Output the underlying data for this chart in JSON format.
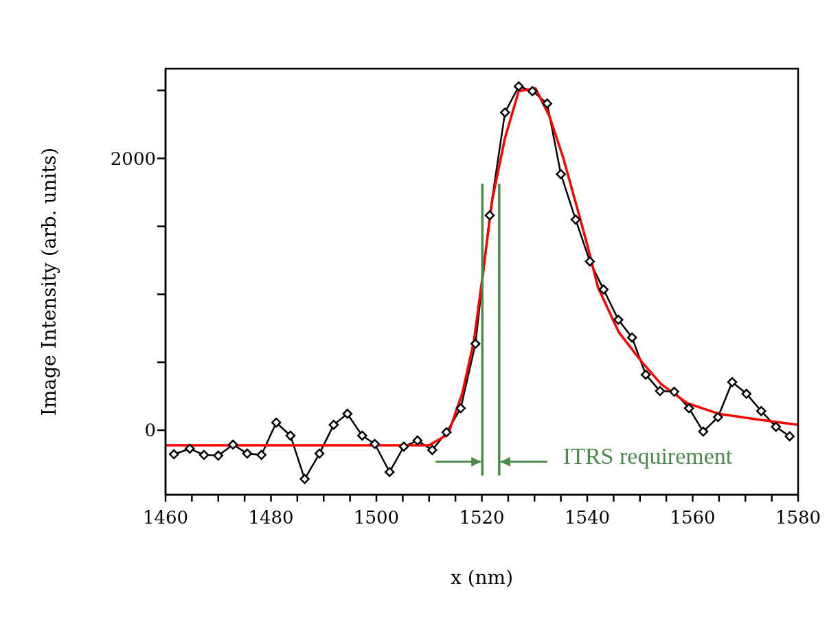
{
  "chart_data": {
    "type": "line",
    "xlabel": "x (nm)",
    "ylabel": "Image Intensity (arb. units)",
    "xlim": [
      1460,
      1580
    ],
    "ylim": [
      -475,
      2660
    ],
    "xticks": [
      1460,
      {
        "value": 1465,
        "label": null
      },
      {
        "value": 1470,
        "label": null
      },
      {
        "value": 1475,
        "label": null
      },
      1480,
      {
        "value": 1485,
        "label": null
      },
      {
        "value": 1490,
        "label": null
      },
      {
        "value": 1495,
        "label": null
      },
      1500,
      {
        "value": 1505,
        "label": null
      },
      {
        "value": 1510,
        "label": null
      },
      {
        "value": 1515,
        "label": null
      },
      1520,
      {
        "value": 1525,
        "label": null
      },
      {
        "value": 1530,
        "label": null
      },
      {
        "value": 1535,
        "label": null
      },
      1540,
      {
        "value": 1545,
        "label": null
      },
      {
        "value": 1550,
        "label": null
      },
      {
        "value": 1555,
        "label": null
      },
      1560,
      {
        "value": 1565,
        "label": null
      },
      {
        "value": 1570,
        "label": null
      },
      {
        "value": 1575,
        "label": null
      },
      1580
    ],
    "yticks": [
      0,
      {
        "value": 500,
        "label": null
      },
      {
        "value": 1000,
        "label": null
      },
      {
        "value": 1500,
        "label": null
      },
      2000,
      {
        "value": 2500,
        "label": null
      }
    ],
    "series": [
      {
        "color": "#000000",
        "marker": "diamond",
        "x": [
          1461.6,
          1464.6,
          1467.3,
          1470.0,
          1472.8,
          1475.5,
          1478.2,
          1481.0,
          1483.7,
          1486.4,
          1489.2,
          1491.9,
          1494.5,
          1497.3,
          1499.7,
          1502.5,
          1505.2,
          1507.8,
          1510.6,
          1513.3,
          1516.0,
          1518.8,
          1521.5,
          1524.4,
          1527.0,
          1529.6,
          1532.4,
          1535.0,
          1537.8,
          1540.5,
          1543.1,
          1545.9,
          1548.5,
          1551.1,
          1553.8,
          1556.5,
          1559.3,
          1562.0,
          1564.8,
          1567.5,
          1570.2,
          1573.0,
          1575.8,
          1578.4
        ],
        "values": [
          -177,
          -136,
          -182,
          -187,
          -106,
          -172,
          -182,
          56,
          -40,
          -359,
          -172,
          40,
          121,
          -40,
          -101,
          -308,
          -121,
          -76,
          -146,
          -15,
          162,
          636,
          1581,
          2338,
          2530,
          2495,
          2404,
          1884,
          1550,
          1242,
          1035,
          813,
          682,
          409,
          288,
          283,
          162,
          -10,
          96,
          354,
          268,
          141,
          25,
          -45
        ]
      },
      {
        "color": "#ff0000",
        "marker": "none",
        "x": [
          1460,
          1510,
          1513.6,
          1516.3,
          1518.5,
          1520.1,
          1522,
          1524.4,
          1527,
          1530.2,
          1532.8,
          1535.4,
          1538.3,
          1540,
          1542,
          1546,
          1550.4,
          1554,
          1558.9,
          1565,
          1571.9,
          1576,
          1580
        ],
        "values": [
          -111,
          -111,
          -30,
          273,
          656,
          1121,
          1700,
          2151,
          2495,
          2515,
          2313,
          2010,
          1606,
          1364,
          1055,
          720,
          500,
          340,
          200,
          120,
          81,
          60,
          40
        ]
      }
    ],
    "ref_lines": [
      {
        "axis": "x",
        "value": 1520.1,
        "color": "#4a8a4a"
      },
      {
        "axis": "x",
        "value": 1523.3,
        "color": "#4a8a4a"
      }
    ],
    "annotations": [
      {
        "text": "ITRS requirement",
        "x": 1523.3,
        "y": -232
      }
    ]
  }
}
